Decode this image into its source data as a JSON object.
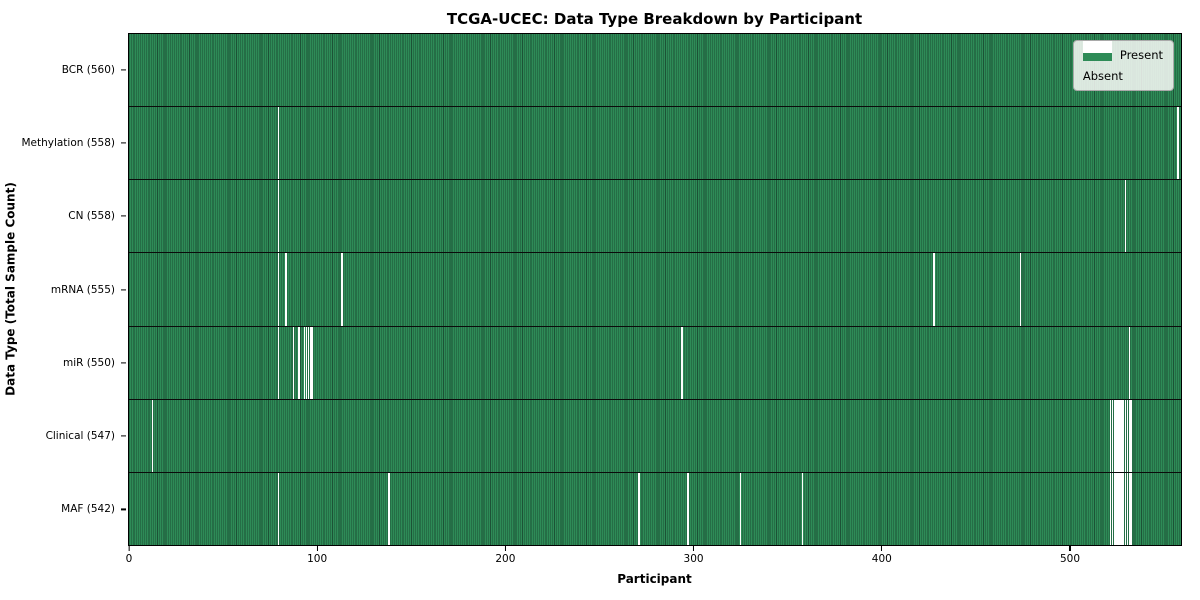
{
  "title": "TCGA-UCEC: Data Type Breakdown by Participant",
  "chart_data": {
    "type": "heatmap",
    "title": "TCGA-UCEC: Data Type Breakdown by Participant",
    "xlabel": "Participant",
    "ylabel": "Data Type (Total Sample Count)",
    "n_participants": 560,
    "x_ticks": [
      0,
      100,
      200,
      300,
      400,
      500
    ],
    "grid": false,
    "legend_position": "upper right",
    "legend": {
      "entries": [
        {
          "key": "present",
          "label": "Present",
          "color": "#2e8b57"
        },
        {
          "key": "absent",
          "label": "Absent",
          "color": "#ffffff"
        }
      ]
    },
    "colors": {
      "present": "#2e8b57",
      "present_edge": "#1c5236",
      "absent": "#ffffff"
    },
    "rows": [
      {
        "key": "BCR",
        "label": "BCR (560)",
        "total": 560,
        "absent_participants": []
      },
      {
        "key": "Methylation",
        "label": "Methylation (558)",
        "total": 558,
        "absent_participants": [
          79,
          558
        ]
      },
      {
        "key": "CN",
        "label": "CN (558)",
        "total": 558,
        "absent_participants": [
          79,
          530
        ]
      },
      {
        "key": "mRNA",
        "label": "mRNA (555)",
        "total": 555,
        "absent_participants": [
          79,
          83,
          113,
          428,
          474
        ]
      },
      {
        "key": "miR",
        "label": "miR (550)",
        "total": 550,
        "absent_participants": [
          79,
          87,
          90,
          93,
          94,
          95,
          96,
          97,
          294,
          532
        ]
      },
      {
        "key": "Clinical",
        "label": "Clinical (547)",
        "total": 547,
        "absent_participants": [
          12,
          522,
          523,
          524,
          525,
          526,
          527,
          528,
          529,
          530,
          531,
          532,
          533
        ]
      },
      {
        "key": "MAF",
        "label": "MAF (542)",
        "total": 542,
        "absent_participants": [
          79,
          138,
          271,
          297,
          325,
          358,
          522,
          523,
          524,
          525,
          526,
          527,
          528,
          529,
          530,
          531,
          532,
          533
        ]
      }
    ]
  }
}
